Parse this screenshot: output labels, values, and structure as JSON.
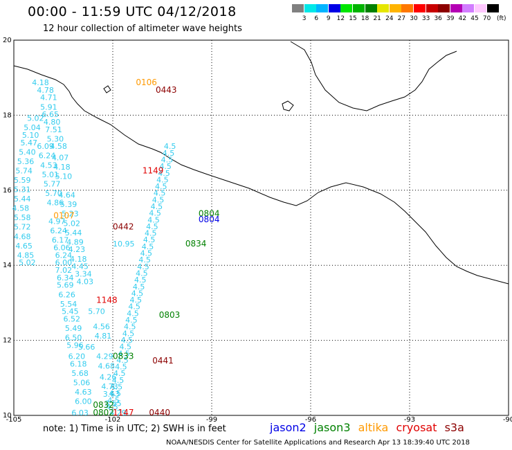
{
  "header": {
    "title": "00:00 - 11:59 UTC 04/12/2018",
    "subtitle": "12 hour collection of altimeter wave heights"
  },
  "colorbar": {
    "labels": [
      "3",
      "6",
      "9",
      "12",
      "15",
      "18",
      "21",
      "24",
      "27",
      "30",
      "33",
      "36",
      "39",
      "42",
      "45",
      "70"
    ],
    "colors": [
      "#808080",
      "#00e8e8",
      "#00b4ff",
      "#0000e6",
      "#00e600",
      "#00b400",
      "#008000",
      "#e6e600",
      "#ffb400",
      "#ff7800",
      "#ff0000",
      "#c80000",
      "#8c0000",
      "#b400b4",
      "#d27dff",
      "#ffc8ff",
      "#000000"
    ],
    "unit": "(ft)"
  },
  "axes": {
    "x_ticks": [
      "-105",
      "-102",
      "-99",
      "-96",
      "-93",
      "-90"
    ],
    "y_ticks": [
      "20",
      "18",
      "16",
      "14",
      "12",
      "10"
    ]
  },
  "satellite_colors": {
    "jason2": "#0000e6",
    "jason3": "#008000",
    "altika": "#ff9900",
    "cryosat": "#8c0000",
    "s3a": "#e00000"
  },
  "time_labels": [
    {
      "text": "0106",
      "sat": "altika",
      "lon": -101.3,
      "lat": 18.8
    },
    {
      "text": "0443",
      "sat": "cryosat",
      "lon": -100.7,
      "lat": 18.6
    },
    {
      "text": "1149",
      "sat": "s3a",
      "lon": -101.1,
      "lat": 16.45
    },
    {
      "text": "0107",
      "sat": "altika",
      "lon": -103.8,
      "lat": 15.25
    },
    {
      "text": "0804",
      "sat": "jason3",
      "lon": -99.4,
      "lat": 15.3
    },
    {
      "text": "0804",
      "sat": "jason2",
      "lon": -99.4,
      "lat": 15.15
    },
    {
      "text": "0442",
      "sat": "cryosat",
      "lon": -102.0,
      "lat": 14.95
    },
    {
      "text": "0834",
      "sat": "jason3",
      "lon": -99.8,
      "lat": 14.5
    },
    {
      "text": "1148",
      "sat": "s3a",
      "lon": -102.5,
      "lat": 13.0
    },
    {
      "text": "0803",
      "sat": "jason3",
      "lon": -100.6,
      "lat": 12.6
    },
    {
      "text": "0833",
      "sat": "jason3",
      "lon": -102.0,
      "lat": 11.5
    },
    {
      "text": "0441",
      "sat": "cryosat",
      "lon": -100.8,
      "lat": 11.38
    },
    {
      "text": "0832",
      "sat": "jason3",
      "lon": -102.6,
      "lat": 10.2
    },
    {
      "text": "0802",
      "sat": "jason3",
      "lon": -102.6,
      "lat": 10.0
    },
    {
      "text": "1147",
      "sat": "s3a",
      "lon": -102.0,
      "lat": 10.0
    },
    {
      "text": "0440",
      "sat": "cryosat",
      "lon": -100.9,
      "lat": 10.0
    }
  ],
  "wave_values": [
    {
      "text": "4.18",
      "lon": -104.45,
      "lat": 18.8
    },
    {
      "text": "4.78",
      "lon": -104.3,
      "lat": 18.6
    },
    {
      "text": "4.71",
      "lon": -104.2,
      "lat": 18.4
    },
    {
      "text": "5.91",
      "lon": -104.2,
      "lat": 18.15
    },
    {
      "text": "6.65",
      "lon": -104.15,
      "lat": 17.95
    },
    {
      "text": "4.80",
      "lon": -104.1,
      "lat": 17.75
    },
    {
      "text": "5.02",
      "lon": -104.6,
      "lat": 17.85
    },
    {
      "text": "5.04",
      "lon": -104.7,
      "lat": 17.6
    },
    {
      "text": "7.51",
      "lon": -104.05,
      "lat": 17.55
    },
    {
      "text": "5.10",
      "lon": -104.75,
      "lat": 17.4
    },
    {
      "text": "5.30",
      "lon": -104.0,
      "lat": 17.3
    },
    {
      "text": "5.47",
      "lon": -104.8,
      "lat": 17.2
    },
    {
      "text": "6.09",
      "lon": -104.3,
      "lat": 17.1
    },
    {
      "text": "4.58",
      "lon": -103.9,
      "lat": 17.1
    },
    {
      "text": "5.40",
      "lon": -104.85,
      "lat": 16.95
    },
    {
      "text": "6.24",
      "lon": -104.25,
      "lat": 16.85
    },
    {
      "text": "4.07",
      "lon": -103.85,
      "lat": 16.8
    },
    {
      "text": "5.36",
      "lon": -104.9,
      "lat": 16.7
    },
    {
      "text": "4.53",
      "lon": -104.2,
      "lat": 16.6
    },
    {
      "text": "4.18",
      "lon": -103.8,
      "lat": 16.55
    },
    {
      "text": "5.74",
      "lon": -104.95,
      "lat": 16.45
    },
    {
      "text": "5.01",
      "lon": -104.15,
      "lat": 16.35
    },
    {
      "text": "5.10",
      "lon": -103.75,
      "lat": 16.3
    },
    {
      "text": "5.59",
      "lon": -105.0,
      "lat": 16.2
    },
    {
      "text": "5.77",
      "lon": -104.1,
      "lat": 16.1
    },
    {
      "text": "5.31",
      "lon": -105.0,
      "lat": 15.95
    },
    {
      "text": "5.70",
      "lon": -104.05,
      "lat": 15.85
    },
    {
      "text": "4.64",
      "lon": -103.65,
      "lat": 15.8
    },
    {
      "text": "5.44",
      "lon": -105.0,
      "lat": 15.7
    },
    {
      "text": "4.86",
      "lon": -104.0,
      "lat": 15.6
    },
    {
      "text": "5.39",
      "lon": -103.6,
      "lat": 15.55
    },
    {
      "text": "4.58",
      "lon": -105.05,
      "lat": 15.45
    },
    {
      "text": "5.23",
      "lon": -103.55,
      "lat": 15.3
    },
    {
      "text": "5.58",
      "lon": -105.0,
      "lat": 15.2
    },
    {
      "text": "4.97",
      "lon": -103.95,
      "lat": 15.1
    },
    {
      "text": "5.02",
      "lon": -103.5,
      "lat": 15.05
    },
    {
      "text": "5.72",
      "lon": -105.0,
      "lat": 14.95
    },
    {
      "text": "6.24",
      "lon": -103.9,
      "lat": 14.85
    },
    {
      "text": "5.44",
      "lon": -103.45,
      "lat": 14.8
    },
    {
      "text": "4.68",
      "lon": -105.0,
      "lat": 14.7
    },
    {
      "text": "6.17",
      "lon": -103.85,
      "lat": 14.6
    },
    {
      "text": "4.89",
      "lon": -103.4,
      "lat": 14.55
    },
    {
      "text": "4.65",
      "lon": -104.95,
      "lat": 14.45
    },
    {
      "text": "6.06",
      "lon": -103.8,
      "lat": 14.4
    },
    {
      "text": "4.23",
      "lon": -103.35,
      "lat": 14.35
    },
    {
      "text": "4.85",
      "lon": -104.9,
      "lat": 14.2
    },
    {
      "text": "6.24",
      "lon": -103.75,
      "lat": 14.2
    },
    {
      "text": "4.18",
      "lon": -103.3,
      "lat": 14.1
    },
    {
      "text": "5.02",
      "lon": -104.85,
      "lat": 14.0
    },
    {
      "text": "6.00",
      "lon": -103.75,
      "lat": 14.0
    },
    {
      "text": "4.45",
      "lon": -103.25,
      "lat": 13.9
    },
    {
      "text": "7.02",
      "lon": -103.75,
      "lat": 13.8
    },
    {
      "text": "3.34",
      "lon": -103.15,
      "lat": 13.7
    },
    {
      "text": "6.34",
      "lon": -103.7,
      "lat": 13.6
    },
    {
      "text": "4.03",
      "lon": -103.1,
      "lat": 13.5
    },
    {
      "text": "5.69",
      "lon": -103.7,
      "lat": 13.4
    },
    {
      "text": "6.26",
      "lon": -103.65,
      "lat": 13.15
    },
    {
      "text": "5.54",
      "lon": -103.6,
      "lat": 12.9
    },
    {
      "text": "5.45",
      "lon": -103.55,
      "lat": 12.7
    },
    {
      "text": "6.52",
      "lon": -103.5,
      "lat": 12.5
    },
    {
      "text": "5.70",
      "lon": -102.75,
      "lat": 12.7
    },
    {
      "text": "5.49",
      "lon": -103.45,
      "lat": 12.25
    },
    {
      "text": "4.56",
      "lon": -102.6,
      "lat": 12.3
    },
    {
      "text": "6.50",
      "lon": -103.45,
      "lat": 12.0
    },
    {
      "text": "4.81",
      "lon": -102.55,
      "lat": 12.05
    },
    {
      "text": "5.96",
      "lon": -103.4,
      "lat": 11.8
    },
    {
      "text": "5.66",
      "lon": -103.05,
      "lat": 11.75
    },
    {
      "text": "6.20",
      "lon": -103.35,
      "lat": 11.5
    },
    {
      "text": "4.29",
      "lon": -102.5,
      "lat": 11.5
    },
    {
      "text": "6.18",
      "lon": -103.3,
      "lat": 11.3
    },
    {
      "text": "4.68",
      "lon": -102.45,
      "lat": 11.25
    },
    {
      "text": "5.68",
      "lon": -103.25,
      "lat": 11.05
    },
    {
      "text": "4.26",
      "lon": -102.4,
      "lat": 10.95
    },
    {
      "text": "5.06",
      "lon": -103.2,
      "lat": 10.8
    },
    {
      "text": "4.73",
      "lon": -102.35,
      "lat": 10.7
    },
    {
      "text": "4.63",
      "lon": -103.15,
      "lat": 10.55
    },
    {
      "text": "3.63",
      "lon": -102.3,
      "lat": 10.5
    },
    {
      "text": "6.00",
      "lon": -103.15,
      "lat": 10.3
    },
    {
      "text": "3.65",
      "lon": -102.25,
      "lat": 10.25
    },
    {
      "text": "6.03",
      "lon": -103.25,
      "lat": 10.0
    },
    {
      "text": "4.29",
      "lon": -102.1,
      "lat": 10.0
    },
    {
      "text": "10.95",
      "lon": -102.0,
      "lat": 14.5
    }
  ],
  "note": "note: 1) Time is in UTC; 2) SWH is in feet",
  "legend": {
    "jason2": "jason2",
    "jason3": "jason3",
    "altika": "altika",
    "cryosat": "cryosat",
    "s3a": "s3a"
  },
  "credit": "NOAA/NESDIS Center for Satellite Applications and Research    Apr 13 18:39:40 UTC 2018"
}
